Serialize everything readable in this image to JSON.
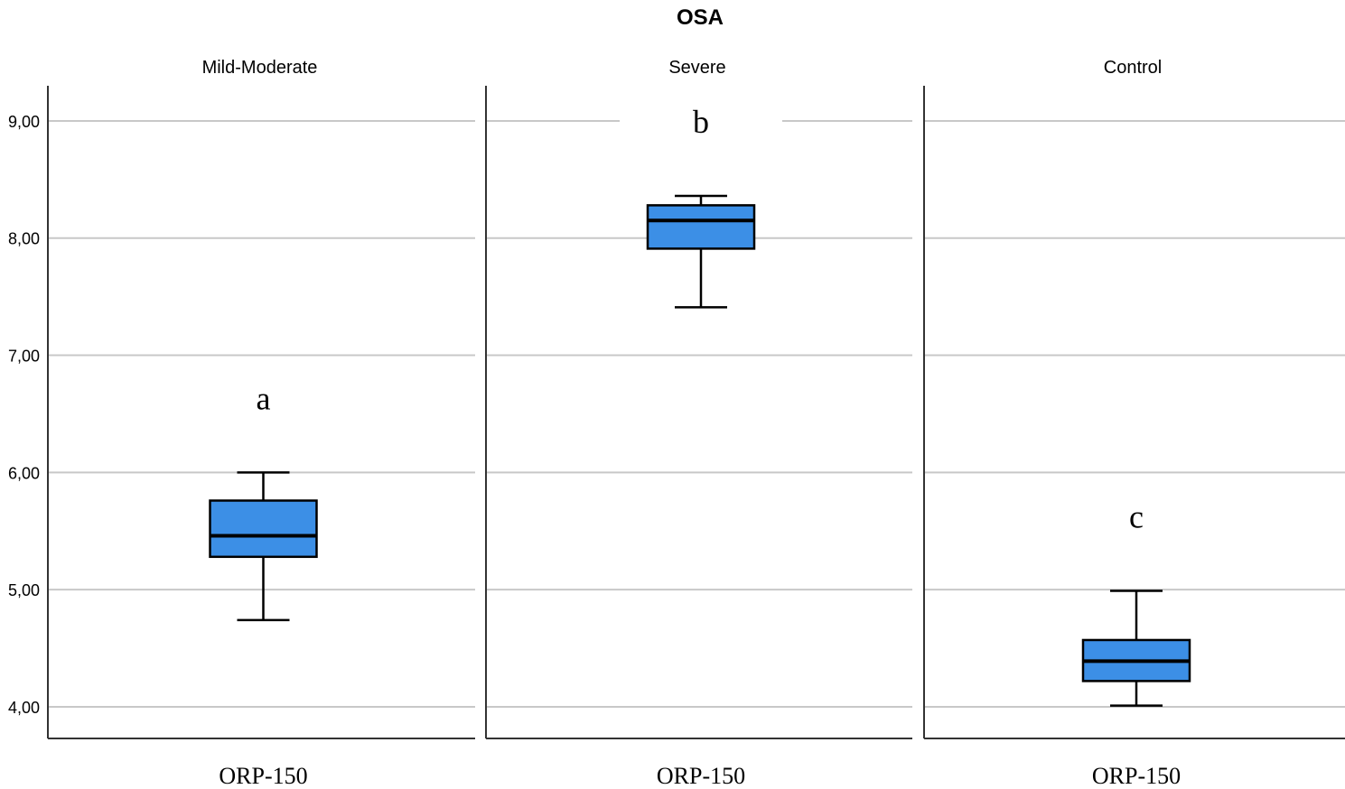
{
  "chart_data": {
    "type": "boxplot",
    "title": "OSA",
    "y_tick_labels": [
      "4,00",
      "5,00",
      "6,00",
      "7,00",
      "8,00",
      "9,00"
    ],
    "y_ticks": [
      4,
      5,
      6,
      7,
      8,
      9
    ],
    "ylim": [
      3.73,
      9.3
    ],
    "grid": true,
    "panels": [
      {
        "name": "Mild-Moderate",
        "x_label": "ORP-150",
        "annotation": "a",
        "box": {
          "min": 4.74,
          "q1": 5.28,
          "median": 5.46,
          "q3": 5.76,
          "max": 6.0
        }
      },
      {
        "name": "Severe",
        "x_label": "ORP-150",
        "annotation": "b",
        "box": {
          "min": 7.41,
          "q1": 7.91,
          "median": 8.15,
          "q3": 8.28,
          "max": 8.36
        }
      },
      {
        "name": "Control",
        "x_label": "ORP-150",
        "annotation": "c",
        "box": {
          "min": 4.01,
          "q1": 4.22,
          "median": 4.39,
          "q3": 4.57,
          "max": 4.99
        }
      }
    ],
    "colors": {
      "box_fill": "#3c8fe6",
      "grid": "#c8c8c8",
      "axis": "#333333"
    }
  }
}
